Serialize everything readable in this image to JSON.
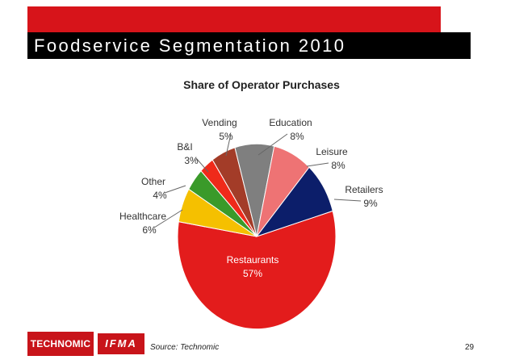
{
  "slide": {
    "title": "Foodservice Segmentation 2010",
    "source": "Source: Technomic",
    "page_number": "29",
    "logos": [
      "TECHNOMIC",
      "IFMA"
    ],
    "colors": {
      "brand_red": "#d7141a",
      "title_bar": "#000000"
    }
  },
  "chart_data": {
    "type": "pie",
    "title": "Share of Operator Purchases",
    "unit": "%",
    "slices": [
      {
        "name": "Restaurants",
        "value": 57,
        "label": "57%",
        "color": "#e31c1c"
      },
      {
        "name": "Healthcare",
        "value": 6,
        "label": "6%",
        "color": "#f5c000"
      },
      {
        "name": "Other",
        "value": 4,
        "label": "4%",
        "color": "#3a9a2a"
      },
      {
        "name": "B&I",
        "value": 3,
        "label": "3%",
        "color": "#ef2a1a"
      },
      {
        "name": "Vending",
        "value": 5,
        "label": "5%",
        "color": "#a33c28"
      },
      {
        "name": "Education",
        "value": 8,
        "label": "8%",
        "color": "#7f7f7f"
      },
      {
        "name": "Leisure",
        "value": 8,
        "label": "8%",
        "color": "#ee7374"
      },
      {
        "name": "Retailers",
        "value": 9,
        "label": "9%",
        "color": "#0c1e6a"
      }
    ]
  }
}
